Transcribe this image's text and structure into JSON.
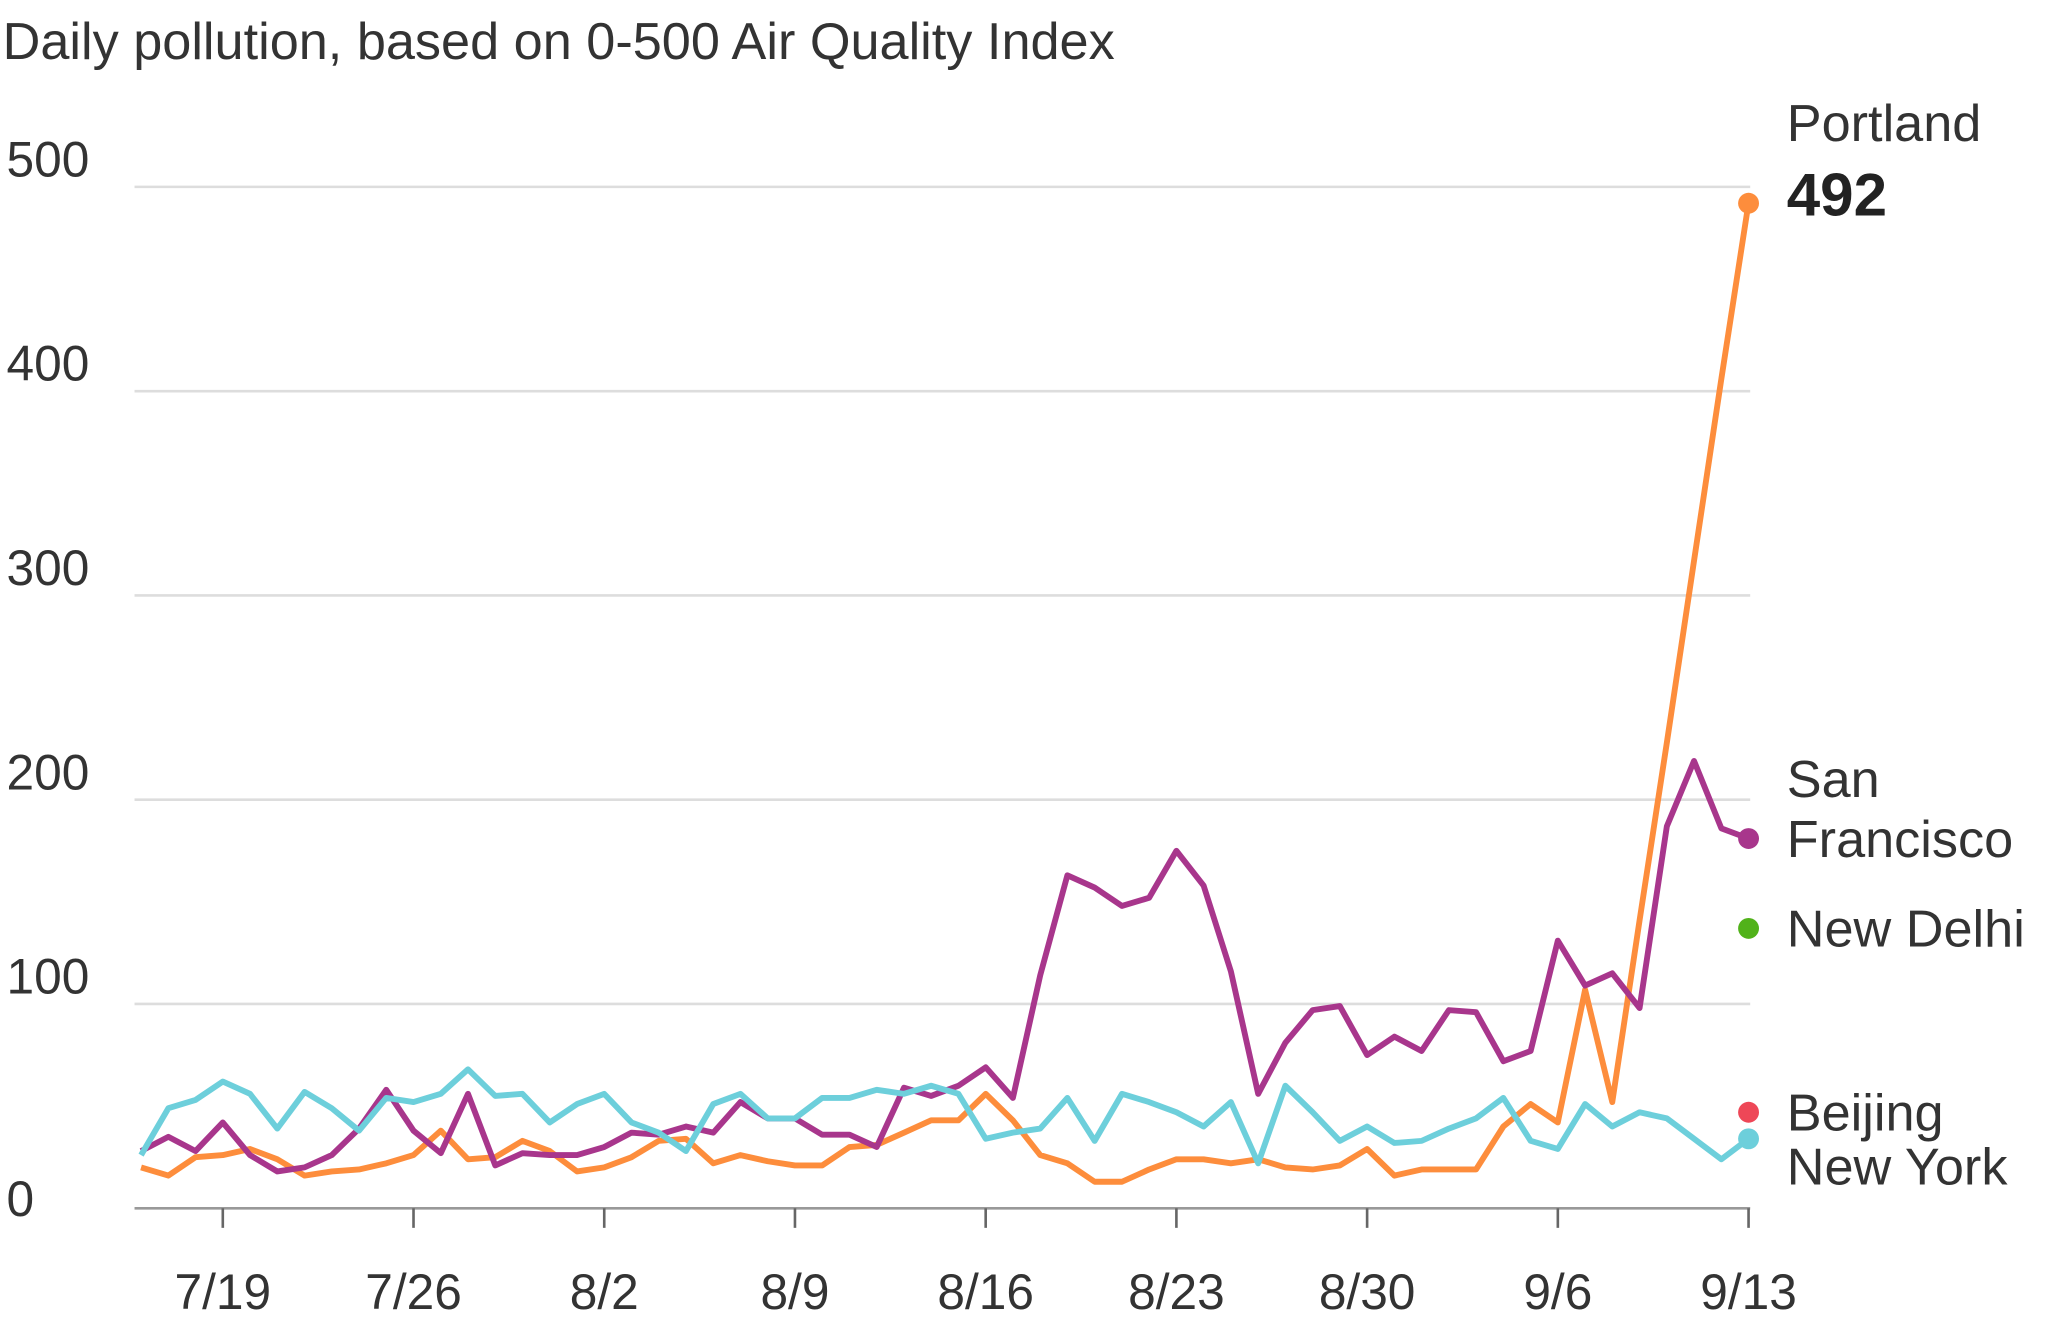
{
  "chart_data": {
    "type": "line",
    "title": "Daily pollution, based on 0-500 Air Quality Index",
    "xlabel": "",
    "ylabel": "",
    "ylim": [
      0,
      500
    ],
    "yticks": [
      "0",
      "100",
      "200",
      "300",
      "400",
      "500"
    ],
    "ytick_values": [
      0,
      100,
      200,
      300,
      400,
      500
    ],
    "x_start": "7/16",
    "x_end": "9/13",
    "xticks": [
      "7/19",
      "7/26",
      "8/2",
      "8/9",
      "8/16",
      "8/23",
      "8/30",
      "9/6",
      "9/13"
    ],
    "xtick_day_index": [
      3,
      10,
      17,
      24,
      31,
      38,
      45,
      52,
      59
    ],
    "grid": true,
    "series": [
      {
        "name": "Portland",
        "color": "#fd8d3c",
        "label_lines": [
          "Portland"
        ],
        "end_value_label": "492",
        "values": [
          20,
          16,
          25,
          26,
          29,
          24,
          16,
          18,
          19,
          22,
          26,
          38,
          24,
          25,
          33,
          28,
          18,
          20,
          25,
          33,
          34,
          22,
          26,
          23,
          21,
          21,
          30,
          31,
          37,
          43,
          43,
          56,
          43,
          26,
          22,
          13,
          13,
          19,
          24,
          24,
          22,
          24,
          20,
          19,
          21,
          29,
          16,
          19,
          19,
          19,
          40,
          51,
          42,
          107,
          52,
          141,
          228,
          317,
          406,
          492
        ]
      },
      {
        "name": "San Francisco",
        "color": "#a8368c",
        "label_lines": [
          "San",
          "Francisco"
        ],
        "values": [
          28,
          35,
          28,
          42,
          26,
          18,
          20,
          26,
          39,
          58,
          38,
          27,
          56,
          21,
          27,
          26,
          26,
          30,
          37,
          36,
          40,
          37,
          52,
          44,
          44,
          36,
          36,
          30,
          59,
          55,
          60,
          69,
          54,
          114,
          163,
          157,
          148,
          152,
          175,
          158,
          116,
          56,
          81,
          97,
          99,
          75,
          84,
          77,
          97,
          96,
          72,
          77,
          131,
          109,
          115,
          98,
          187,
          219,
          186,
          181
        ]
      },
      {
        "name": "New York",
        "color": "#6dcfdb",
        "label_lines": [
          "New York"
        ],
        "values": [
          26,
          49,
          53,
          62,
          56,
          39,
          57,
          49,
          38,
          54,
          52,
          56,
          68,
          55,
          56,
          42,
          51,
          56,
          42,
          37,
          28,
          51,
          56,
          44,
          44,
          54,
          54,
          58,
          56,
          60,
          56,
          34,
          37,
          39,
          54,
          33,
          56,
          52,
          47,
          40,
          52,
          22,
          60,
          47,
          33,
          40,
          32,
          33,
          39,
          44,
          54,
          33,
          29,
          51,
          40,
          47,
          44,
          34,
          24,
          34
        ]
      }
    ],
    "point_markers": [
      {
        "name": "New Delhi",
        "color": "#51b21a",
        "value": 137
      },
      {
        "name": "Beijing",
        "color": "#ee4757",
        "value": 47
      }
    ]
  }
}
